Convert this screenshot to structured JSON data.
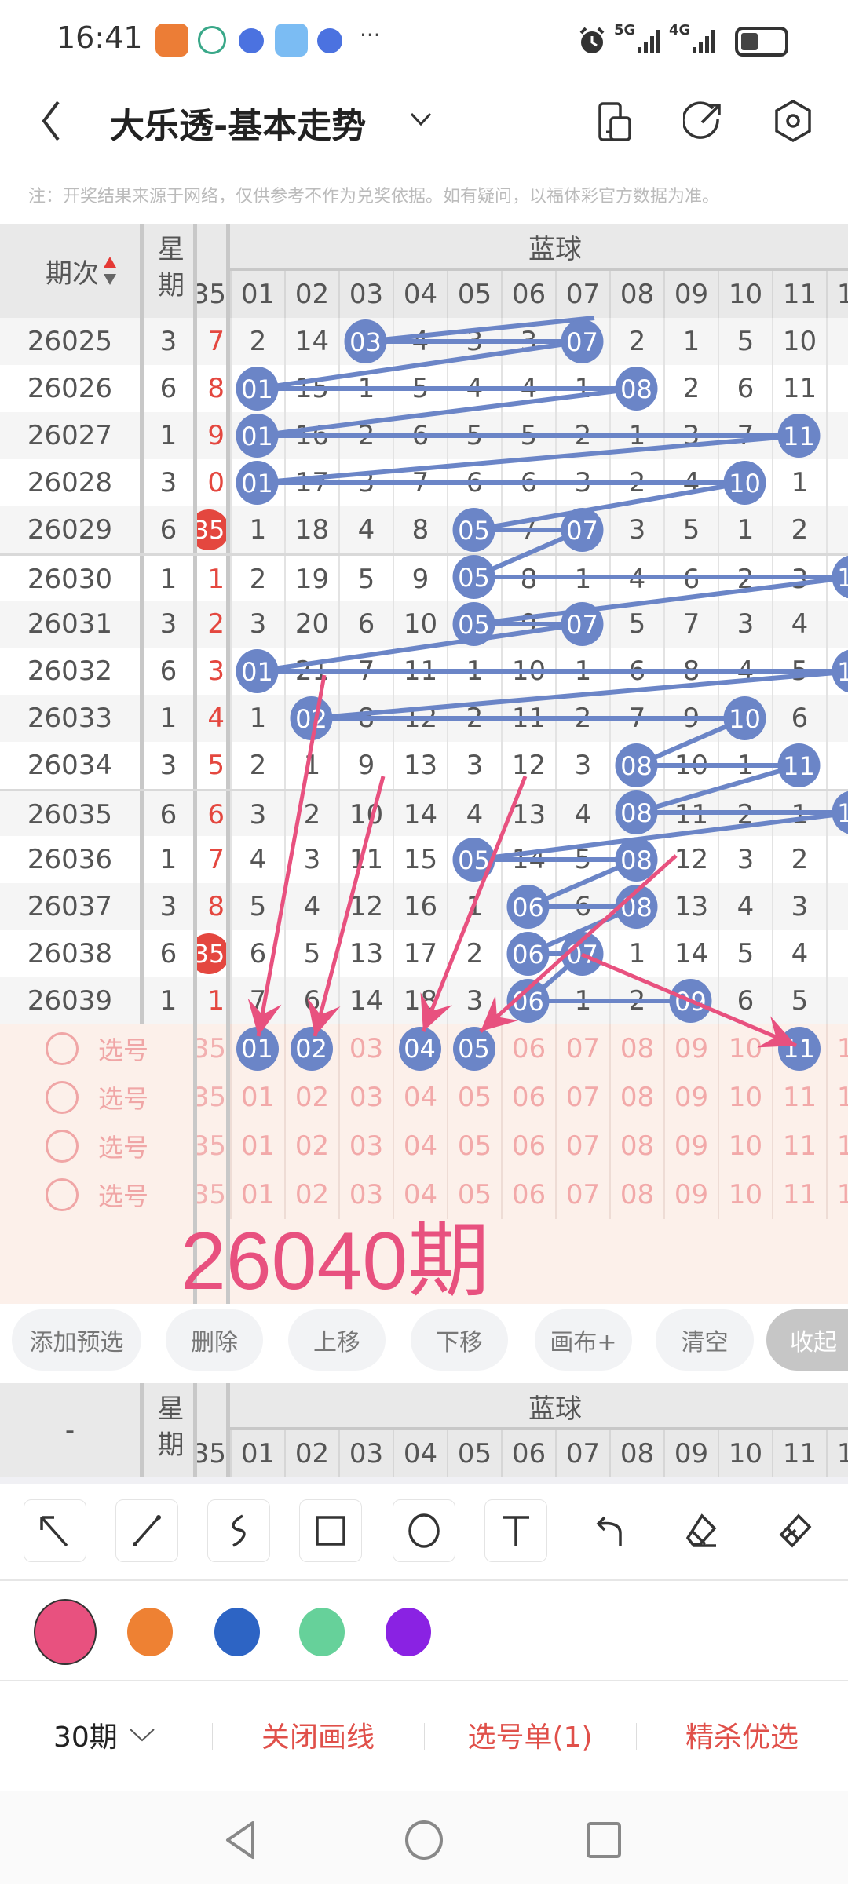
{
  "status_bar": {
    "time": "16:41",
    "net1": "5G",
    "net2": "4G",
    "more": "···"
  },
  "header": {
    "title": "大乐透-基本走势"
  },
  "note": "注：开奖结果来源于网络，仅供参考不作为兑奖依据。如有疑问，以福体彩官方数据为准。",
  "table": {
    "col_issue": "期次",
    "col_week": "星期",
    "group_blue": "蓝球",
    "red_partial_header": "35",
    "blue_cols": [
      "01",
      "02",
      "03",
      "04",
      "05",
      "06",
      "07",
      "08",
      "09",
      "10",
      "11",
      "12"
    ],
    "rows": [
      {
        "issue": "26025",
        "week": "3",
        "red": "7",
        "red_hit": false,
        "blue": [
          "2",
          "14",
          "03",
          "4",
          "3",
          "3",
          "07",
          "2",
          "1",
          "5",
          "10"
        ],
        "hits": [
          3,
          7
        ],
        "col12_hit": false
      },
      {
        "issue": "26026",
        "week": "6",
        "red": "8",
        "red_hit": false,
        "blue": [
          "01",
          "15",
          "1",
          "5",
          "4",
          "4",
          "1",
          "08",
          "2",
          "6",
          "11"
        ],
        "hits": [
          1,
          8
        ],
        "col12_hit": false
      },
      {
        "issue": "26027",
        "week": "1",
        "red": "9",
        "red_hit": false,
        "blue": [
          "01",
          "16",
          "2",
          "6",
          "5",
          "5",
          "2",
          "1",
          "3",
          "7",
          "11"
        ],
        "hits": [
          1,
          11
        ],
        "col12_hit": false
      },
      {
        "issue": "26028",
        "week": "3",
        "red": "0",
        "red_hit": false,
        "blue": [
          "01",
          "17",
          "3",
          "7",
          "6",
          "6",
          "3",
          "2",
          "4",
          "10",
          "1"
        ],
        "hits": [
          1,
          10
        ],
        "col12_hit": false
      },
      {
        "issue": "26029",
        "week": "6",
        "red": "35",
        "red_hit": true,
        "blue": [
          "1",
          "18",
          "4",
          "8",
          "05",
          "7",
          "07",
          "3",
          "5",
          "1",
          "2"
        ],
        "hits": [
          5,
          7
        ],
        "col12_hit": false
      },
      {
        "issue": "26030",
        "week": "1",
        "red": "1",
        "red_hit": false,
        "blue": [
          "2",
          "19",
          "5",
          "9",
          "05",
          "8",
          "1",
          "4",
          "6",
          "2",
          "3"
        ],
        "hits": [
          5
        ],
        "col12_hit": true
      },
      {
        "issue": "26031",
        "week": "3",
        "red": "2",
        "red_hit": false,
        "blue": [
          "3",
          "20",
          "6",
          "10",
          "05",
          "9",
          "07",
          "5",
          "7",
          "3",
          "4"
        ],
        "hits": [
          5,
          7
        ],
        "col12_hit": false
      },
      {
        "issue": "26032",
        "week": "6",
        "red": "3",
        "red_hit": false,
        "blue": [
          "01",
          "21",
          "7",
          "11",
          "1",
          "10",
          "1",
          "6",
          "8",
          "4",
          "5"
        ],
        "hits": [
          1
        ],
        "col12_hit": true
      },
      {
        "issue": "26033",
        "week": "1",
        "red": "4",
        "red_hit": false,
        "blue": [
          "1",
          "02",
          "8",
          "12",
          "2",
          "11",
          "2",
          "7",
          "9",
          "10",
          "6"
        ],
        "hits": [
          2,
          10
        ],
        "col12_hit": false
      },
      {
        "issue": "26034",
        "week": "3",
        "red": "5",
        "red_hit": false,
        "blue": [
          "2",
          "1",
          "9",
          "13",
          "3",
          "12",
          "3",
          "08",
          "10",
          "1",
          "11"
        ],
        "hits": [
          8,
          11
        ],
        "col12_hit": false
      },
      {
        "issue": "26035",
        "week": "6",
        "red": "6",
        "red_hit": false,
        "blue": [
          "3",
          "2",
          "10",
          "14",
          "4",
          "13",
          "4",
          "08",
          "11",
          "2",
          "1"
        ],
        "hits": [
          8
        ],
        "col12_hit": true
      },
      {
        "issue": "26036",
        "week": "1",
        "red": "7",
        "red_hit": false,
        "blue": [
          "4",
          "3",
          "11",
          "15",
          "05",
          "14",
          "5",
          "08",
          "12",
          "3",
          "2"
        ],
        "hits": [
          5,
          8
        ],
        "col12_hit": false
      },
      {
        "issue": "26037",
        "week": "3",
        "red": "8",
        "red_hit": false,
        "blue": [
          "5",
          "4",
          "12",
          "16",
          "1",
          "06",
          "6",
          "08",
          "13",
          "4",
          "3"
        ],
        "hits": [
          6,
          8
        ],
        "col12_hit": false
      },
      {
        "issue": "26038",
        "week": "6",
        "red": "35",
        "red_hit": true,
        "blue": [
          "6",
          "5",
          "13",
          "17",
          "2",
          "06",
          "07",
          "1",
          "14",
          "5",
          "4"
        ],
        "hits": [
          6,
          7
        ],
        "col12_hit": false
      },
      {
        "issue": "26039",
        "week": "1",
        "red": "1",
        "red_hit": false,
        "blue": [
          "7",
          "6",
          "14",
          "18",
          "3",
          "06",
          "1",
          "2",
          "09",
          "6",
          "5"
        ],
        "hits": [
          6,
          9
        ],
        "col12_hit": false
      }
    ],
    "select_rows": [
      {
        "label": "选号",
        "selected": [
          1,
          2,
          4,
          5,
          11
        ]
      },
      {
        "label": "选号",
        "selected": []
      },
      {
        "label": "选号",
        "selected": []
      },
      {
        "label": "选号",
        "selected": []
      }
    ],
    "annotation_text": "26040期",
    "second_header_issue": "-"
  },
  "actions": [
    {
      "label": "添加预选"
    },
    {
      "label": "删除"
    },
    {
      "label": "上移"
    },
    {
      "label": "下移"
    },
    {
      "label": "画布+"
    },
    {
      "label": "清空"
    },
    {
      "label": "收起"
    }
  ],
  "tools": [
    "arrow-tool",
    "line-tool",
    "freehand-tool",
    "rectangle-tool",
    "circle-tool",
    "text-tool",
    "undo",
    "eraser",
    "clear-brush"
  ],
  "colors": {
    "palette": [
      "#e8517f",
      "#ee8133",
      "#2d64c4",
      "#66d19a",
      "#8a22e3"
    ],
    "selected": "#e8517f",
    "ball_blue": "#6b85c7",
    "accent_red": "#e0504a"
  },
  "bottom_bar": {
    "period": "30期",
    "close_draw": "关闭画线",
    "pick_list": "选号单(1)",
    "fine_pick": "精杀优选"
  }
}
